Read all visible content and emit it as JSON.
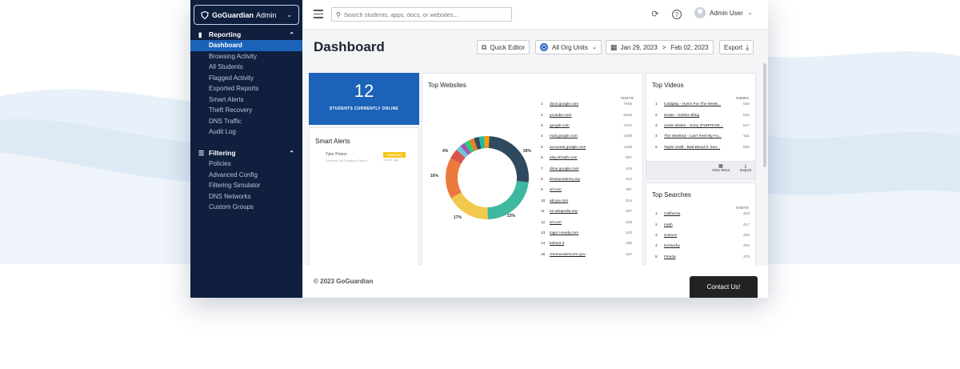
{
  "brand": {
    "name_bold": "GoGuardian",
    "name_rest": "Admin"
  },
  "sidebar": {
    "sections": [
      {
        "label": "Reporting",
        "items": [
          "Dashboard",
          "Browsing Activity",
          "All Students",
          "Flagged Activity",
          "Exported Reports",
          "Smart Alerts",
          "Theft Recovery",
          "DNS Traffic",
          "Audit Log"
        ]
      },
      {
        "label": "Filtering",
        "items": [
          "Policies",
          "Advanced Config",
          "Filtering Simulator",
          "DNS Networks",
          "Custom Groups"
        ]
      }
    ],
    "active": "Dashboard"
  },
  "topbar": {
    "search_placeholder": "Search students, apps, docs, or websites...",
    "user": "Admin User"
  },
  "header": {
    "title": "Dashboard",
    "quick_editor": "Quick Editor",
    "org_units": "All Org Units",
    "date_from": "Jan 29, 2023",
    "date_sep": ">",
    "date_to": "Feb 02, 2023",
    "export": "Export"
  },
  "online": {
    "count": "12",
    "label": "STUDENTS CURRENTLY ONLINE"
  },
  "smart_alerts": {
    "title": "Smart Alerts",
    "name": "Tyler Peters",
    "sub": "Devoted 1st Category Report",
    "tag": "CONFLICT",
    "tag_sub": "1 hour ago"
  },
  "top_websites": {
    "title": "Top Websites",
    "col": "VISITS",
    "rows": [
      {
        "rank": "1",
        "name": "docs.google.com",
        "value": "7566"
      },
      {
        "rank": "2",
        "name": "youtube.com",
        "value": "6236"
      },
      {
        "rank": "3",
        "name": "google.com",
        "value": "4720"
      },
      {
        "rank": "4",
        "name": "mail.google.com",
        "value": "4209"
      },
      {
        "rank": "5",
        "name": "accounts.google.com",
        "value": "1108"
      },
      {
        "rank": "6",
        "name": "play.stmath.com",
        "value": "697"
      },
      {
        "rank": "7",
        "name": "drive.google.com",
        "value": "416"
      },
      {
        "rank": "8",
        "name": "khanacademy.org",
        "value": "410"
      },
      {
        "rank": "9",
        "name": "ixl.com",
        "value": "387"
      },
      {
        "rank": "10",
        "name": "abcya.com",
        "value": "314"
      },
      {
        "rank": "11",
        "name": "en.wikipedia.org",
        "value": "257"
      },
      {
        "rank": "12",
        "name": "ixl.com",
        "value": "245"
      },
      {
        "rank": "13",
        "name": "login.i-ready.com",
        "value": "242"
      },
      {
        "rank": "14",
        "name": "kahoot.it",
        "value": "186"
      },
      {
        "rank": "15",
        "name": "chemunderscore.gov",
        "value": "157"
      }
    ]
  },
  "chart_data": {
    "type": "pie",
    "categories": [
      "docs.google.com",
      "youtube.com",
      "google.com",
      "mail.google.com",
      "accounts.google.com",
      "other1",
      "other2",
      "other3",
      "other4",
      "other5",
      "other6",
      "other7"
    ],
    "values": [
      26,
      23,
      17,
      16,
      4,
      2,
      2,
      2,
      2,
      2,
      2,
      2
    ],
    "labels_shown": [
      "26%",
      "23%",
      "17%",
      "16%",
      "4%"
    ],
    "colors": [
      "#2f4a5e",
      "#3fb8a0",
      "#f2c94c",
      "#eb7a3c",
      "#d9534f",
      "#6ec6d8",
      "#9b59b6",
      "#2ecc71",
      "#e67e22",
      "#34495e",
      "#1abc9c",
      "#f39c12"
    ]
  },
  "top_videos": {
    "title": "Top Videos",
    "col": "VIEWS",
    "rows": [
      {
        "rank": "1",
        "name": "Coldplay - Hymn For The Week...",
        "value": "532"
      },
      {
        "rank": "2",
        "name": "Drake - Hotline Bling",
        "value": "522"
      },
      {
        "rank": "3",
        "name": "Justin Bieber - Sorry (PURPOSE...",
        "value": "517"
      },
      {
        "rank": "4",
        "name": "The Weeknd - Can't Feel My Fa...",
        "value": "511"
      },
      {
        "rank": "5",
        "name": "Taylor Swift - Bad Blood ft. Ken...",
        "value": "500"
      }
    ],
    "view_more": "View More",
    "export": "Export"
  },
  "top_searches": {
    "title": "Top Searches",
    "col": "VISITS",
    "rows": [
      {
        "rank": "1",
        "name": "California",
        "value": "423"
      },
      {
        "rank": "2",
        "name": "math",
        "value": "417"
      },
      {
        "rank": "3",
        "name": "science",
        "value": "406"
      },
      {
        "rank": "4",
        "name": "Kentucky",
        "value": "402"
      },
      {
        "rank": "5",
        "name": "Florida",
        "value": "375"
      }
    ]
  },
  "footer": {
    "copyright": "© 2023 GoGuardian",
    "contact": "Contact Us!"
  }
}
